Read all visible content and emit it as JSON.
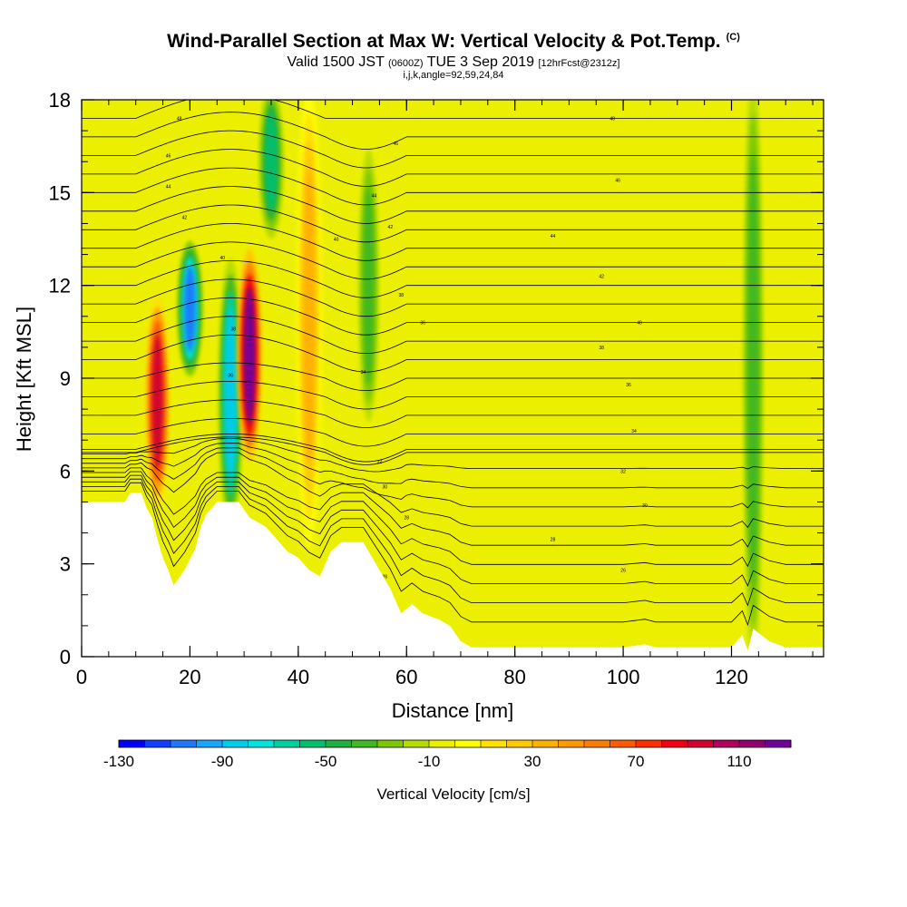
{
  "title": {
    "main": "Wind-Parallel Section at Max W: Vertical Velocity & Pot.Temp.",
    "copyright": "(C)"
  },
  "subtitle": {
    "valid": "Valid 1500 JST",
    "zulu": "(0600Z)",
    "date": "TUE 3 Sep 2019",
    "fcst": "[12hrFcst@2312z]",
    "line2": "i,j,k,angle=92,59,24,84"
  },
  "chart_data": {
    "type": "heatmap",
    "title": "Wind-Parallel Section at Max W: Vertical Velocity & Pot.Temp.",
    "xlabel": "Distance [nm]",
    "ylabel": "Height [Kft MSL]",
    "xlim": [
      0,
      137
    ],
    "ylim": [
      0,
      18
    ],
    "xticks": [
      0,
      20,
      40,
      60,
      80,
      100,
      120
    ],
    "yticks": [
      0,
      3,
      6,
      9,
      12,
      15,
      18
    ],
    "grid": false,
    "colorbar": {
      "label": "Vertical Velocity [cm/s]",
      "tick_labels": [
        "-130",
        "-90",
        "-50",
        "-10",
        "30",
        "70",
        "110"
      ],
      "colors": [
        "#0000ff",
        "#1040ff",
        "#1e78ff",
        "#1aa6ff",
        "#00ccee",
        "#00e4dd",
        "#00d0a0",
        "#00c070",
        "#20b040",
        "#40b820",
        "#7cc800",
        "#b4dc00",
        "#ecf000",
        "#ffff00",
        "#ffe000",
        "#ffc800",
        "#ffb000",
        "#ff9800",
        "#ff7c00",
        "#ff5c00",
        "#ff3000",
        "#f00010",
        "#d00030",
        "#b00060",
        "#900070",
        "#70009a"
      ]
    },
    "velocity_features": [
      {
        "x": 14,
        "ymin": 5.5,
        "ymax": 11,
        "value": 100
      },
      {
        "x": 20,
        "ymin": 9.5,
        "ymax": 13,
        "value": -110
      },
      {
        "x": 27.5,
        "ymin": 5,
        "ymax": 12,
        "value": -90
      },
      {
        "x": 31,
        "ymin": 7,
        "ymax": 12.5,
        "value": 130
      },
      {
        "x": 35,
        "ymin": 14,
        "ymax": 18,
        "value": -60
      },
      {
        "x": 42,
        "ymin": 5,
        "ymax": 17,
        "value": 40
      },
      {
        "x": 53,
        "ymin": 8,
        "ymax": 16,
        "value": -40
      },
      {
        "x": 124,
        "ymin": 0.5,
        "ymax": 18,
        "value": -40
      }
    ],
    "terrain": [
      [
        0,
        5
      ],
      [
        8,
        5
      ],
      [
        9,
        5.3
      ],
      [
        11,
        5.3
      ],
      [
        12,
        4.8
      ],
      [
        13,
        4.5
      ],
      [
        14,
        3.8
      ],
      [
        15,
        3.2
      ],
      [
        16,
        2.8
      ],
      [
        17,
        2.3
      ],
      [
        19,
        2.8
      ],
      [
        21,
        3.5
      ],
      [
        22,
        4.2
      ],
      [
        23,
        4.6
      ],
      [
        25,
        5
      ],
      [
        29,
        5
      ],
      [
        31,
        4.5
      ],
      [
        34,
        4.2
      ],
      [
        36,
        3.8
      ],
      [
        38,
        3.4
      ],
      [
        40,
        3.2
      ],
      [
        42,
        2.8
      ],
      [
        44,
        2.6
      ],
      [
        46,
        3.4
      ],
      [
        48,
        3.7
      ],
      [
        52,
        3.7
      ],
      [
        53,
        3.4
      ],
      [
        55,
        2.8
      ],
      [
        57,
        2.2
      ],
      [
        59,
        1.4
      ],
      [
        61,
        1.7
      ],
      [
        63,
        1.4
      ],
      [
        66,
        1.2
      ],
      [
        68,
        1
      ],
      [
        70,
        0.5
      ],
      [
        72,
        0.3
      ],
      [
        76,
        0.3
      ],
      [
        80,
        0.3
      ],
      [
        90,
        0.3
      ],
      [
        100,
        0.3
      ],
      [
        104,
        0.4
      ],
      [
        106,
        0.3
      ],
      [
        120,
        0.3
      ],
      [
        122,
        0.7
      ],
      [
        123,
        0.2
      ],
      [
        124,
        0.9
      ],
      [
        127,
        0.5
      ],
      [
        130,
        0.3
      ],
      [
        137,
        0.3
      ]
    ],
    "theta_label_points": [
      {
        "x": 18,
        "y": 17.4,
        "label": "48"
      },
      {
        "x": 16,
        "y": 16.2,
        "label": "46"
      },
      {
        "x": 16,
        "y": 15.2,
        "label": "44"
      },
      {
        "x": 19,
        "y": 14.2,
        "label": "42"
      },
      {
        "x": 26,
        "y": 12.9,
        "label": "40"
      },
      {
        "x": 28,
        "y": 10.6,
        "label": "38"
      },
      {
        "x": 27.5,
        "y": 9.1,
        "label": "36"
      },
      {
        "x": 58,
        "y": 16.6,
        "label": "46"
      },
      {
        "x": 54,
        "y": 14.9,
        "label": "44"
      },
      {
        "x": 57,
        "y": 13.9,
        "label": "42"
      },
      {
        "x": 47,
        "y": 13.5,
        "label": "40"
      },
      {
        "x": 59,
        "y": 11.7,
        "label": "38"
      },
      {
        "x": 63,
        "y": 10.8,
        "label": "36"
      },
      {
        "x": 52,
        "y": 9.2,
        "label": "34"
      },
      {
        "x": 55,
        "y": 6.3,
        "label": "32"
      },
      {
        "x": 56,
        "y": 5.5,
        "label": "30"
      },
      {
        "x": 60,
        "y": 4.5,
        "label": "28"
      },
      {
        "x": 56,
        "y": 2.6,
        "label": "26"
      },
      {
        "x": 98,
        "y": 17.4,
        "label": "48"
      },
      {
        "x": 99,
        "y": 15.4,
        "label": "46"
      },
      {
        "x": 87,
        "y": 13.6,
        "label": "44"
      },
      {
        "x": 96,
        "y": 12.3,
        "label": "42"
      },
      {
        "x": 103,
        "y": 10.8,
        "label": "40"
      },
      {
        "x": 96,
        "y": 10.0,
        "label": "38"
      },
      {
        "x": 101,
        "y": 8.8,
        "label": "36"
      },
      {
        "x": 102,
        "y": 7.3,
        "label": "34"
      },
      {
        "x": 100,
        "y": 6.0,
        "label": "32"
      },
      {
        "x": 104,
        "y": 4.9,
        "label": "30"
      },
      {
        "x": 87,
        "y": 3.8,
        "label": "28"
      },
      {
        "x": 100,
        "y": 2.8,
        "label": "26"
      }
    ]
  }
}
